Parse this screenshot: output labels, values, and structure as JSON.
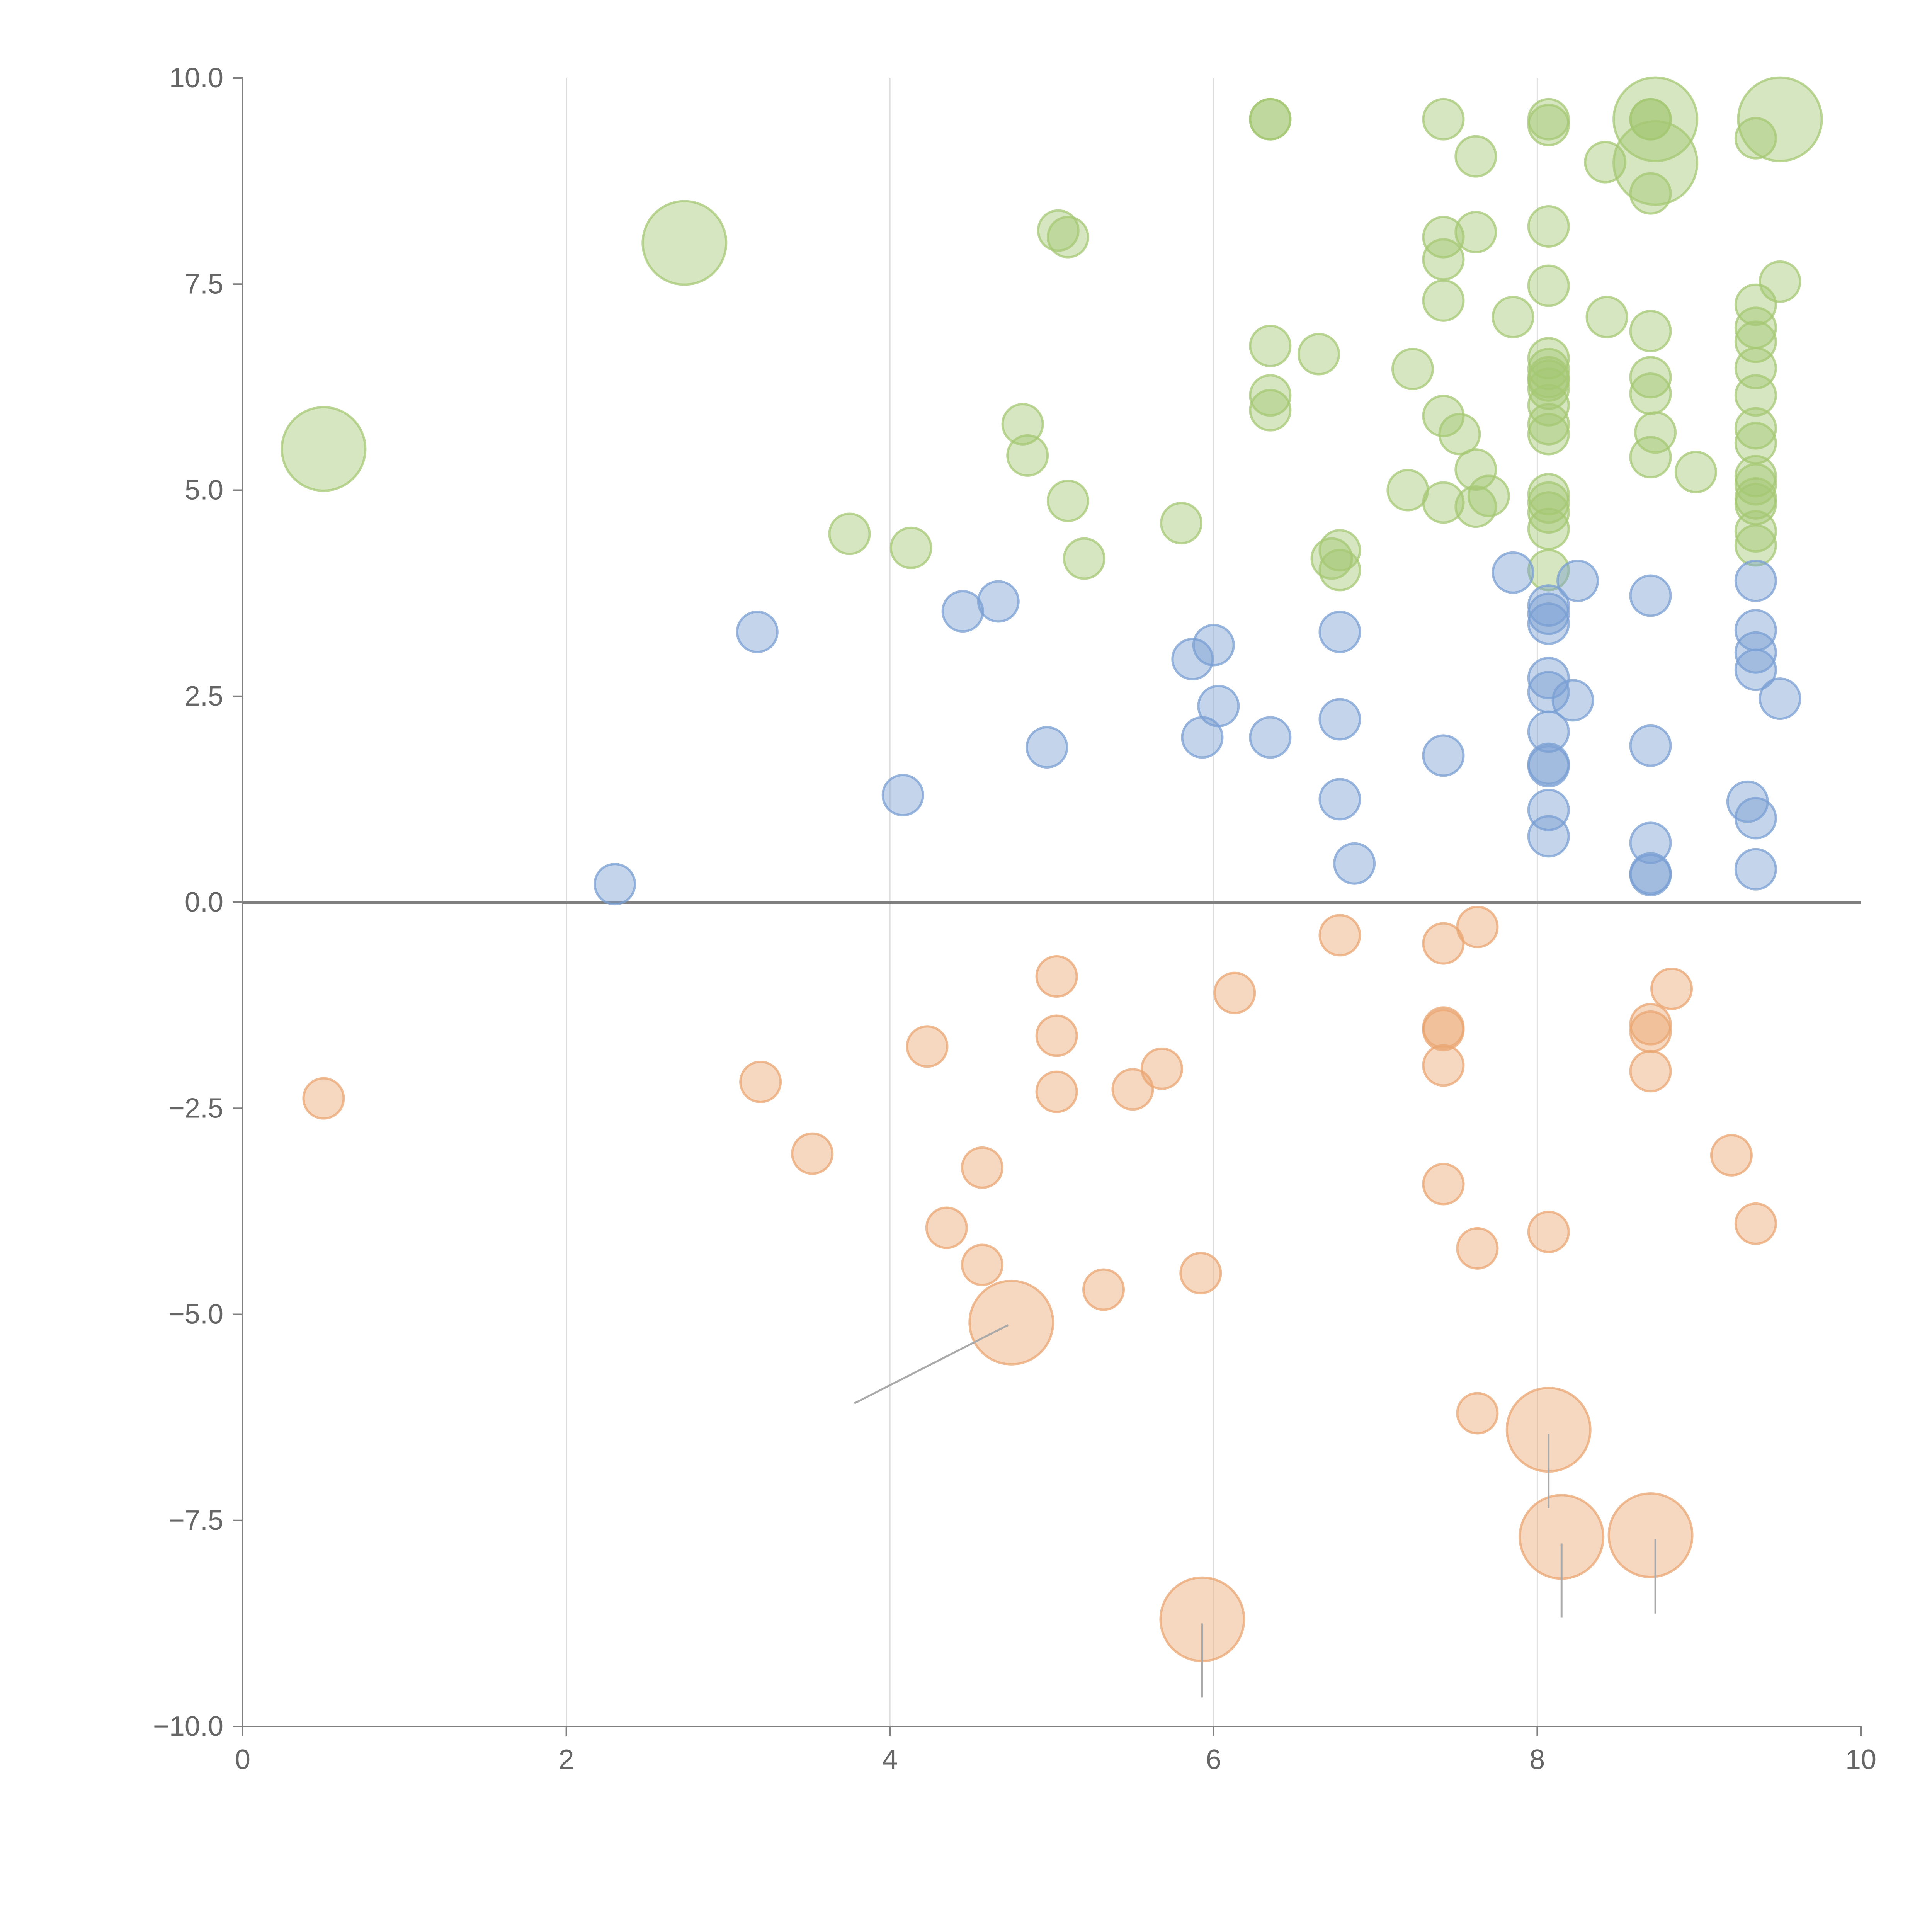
{
  "chart_data": {
    "type": "scatter",
    "title": "",
    "xlabel": "",
    "ylabel": "",
    "xlim": [
      0,
      10
    ],
    "ylim": [
      -10,
      10
    ],
    "grid": "vertical",
    "x_ticks": [
      0,
      2,
      4,
      6,
      8,
      10
    ],
    "x_tick_labels": [
      "0",
      "2",
      "4",
      "6",
      "8",
      "10"
    ],
    "y_ticks": [
      10,
      7.5,
      5,
      2.5,
      0,
      -2.5,
      -5,
      -7.5,
      -10
    ],
    "y_tick_labels": [
      "10.0",
      "7.5",
      "5.0",
      "2.5",
      "0.0",
      "−2.5",
      "−5.0",
      "−7.5",
      "−10.0"
    ],
    "reference_line_y": 0,
    "colors": {
      "green": "#a5c874",
      "blue": "#7a9fd3",
      "orange": "#eaa672",
      "axis": "#808080",
      "grid": "#dddddd",
      "tick_text": "#666666",
      "leader": "#aaaaaa"
    },
    "series": [
      {
        "name": "green",
        "color": "green",
        "points": [
          [
            0.5,
            5.5,
            3
          ],
          [
            2.73,
            8.0,
            3
          ],
          [
            3.75,
            4.47,
            1
          ],
          [
            4.13,
            4.3,
            1
          ],
          [
            4.82,
            5.8,
            1
          ],
          [
            4.85,
            5.42,
            1
          ],
          [
            5.04,
            8.15,
            1
          ],
          [
            5.1,
            8.07,
            1
          ],
          [
            5.1,
            4.87,
            1
          ],
          [
            5.2,
            4.17,
            1
          ],
          [
            5.8,
            4.6,
            1
          ],
          [
            6.35,
            9.5,
            1
          ],
          [
            6.35,
            9.5,
            1
          ],
          [
            6.35,
            6.75,
            1
          ],
          [
            6.35,
            6.15,
            1
          ],
          [
            6.35,
            5.97,
            1
          ],
          [
            6.65,
            6.65,
            1
          ],
          [
            6.73,
            4.17,
            1
          ],
          [
            6.78,
            4.27,
            1
          ],
          [
            6.78,
            4.03,
            1
          ],
          [
            7.2,
            5.0,
            1
          ],
          [
            7.23,
            6.47,
            1
          ],
          [
            7.42,
            9.5,
            1
          ],
          [
            7.42,
            8.07,
            1
          ],
          [
            7.42,
            7.8,
            1
          ],
          [
            7.42,
            7.3,
            1
          ],
          [
            7.42,
            5.9,
            1
          ],
          [
            7.42,
            4.85,
            1
          ],
          [
            7.52,
            5.68,
            1
          ],
          [
            7.62,
            9.05,
            1
          ],
          [
            7.62,
            8.13,
            1
          ],
          [
            7.62,
            5.25,
            1
          ],
          [
            7.62,
            4.8,
            1
          ],
          [
            7.7,
            4.93,
            1
          ],
          [
            7.85,
            7.1,
            1
          ],
          [
            8.07,
            9.5,
            1
          ],
          [
            8.07,
            9.43,
            1
          ],
          [
            8.07,
            8.2,
            1
          ],
          [
            8.07,
            7.48,
            1
          ],
          [
            8.07,
            6.6,
            1
          ],
          [
            8.07,
            6.47,
            1
          ],
          [
            8.07,
            6.37,
            1
          ],
          [
            8.07,
            6.33,
            1
          ],
          [
            8.07,
            6.23,
            1
          ],
          [
            8.07,
            6.03,
            1
          ],
          [
            8.07,
            5.8,
            1
          ],
          [
            8.07,
            5.68,
            1
          ],
          [
            8.07,
            4.95,
            1
          ],
          [
            8.07,
            4.85,
            1
          ],
          [
            8.07,
            4.73,
            1
          ],
          [
            8.07,
            4.53,
            1
          ],
          [
            8.07,
            4.03,
            1
          ],
          [
            8.42,
            8.98,
            1
          ],
          [
            8.43,
            7.1,
            1
          ],
          [
            8.7,
            9.5,
            1
          ],
          [
            8.7,
            9.5,
            1
          ],
          [
            8.7,
            8.6,
            1
          ],
          [
            8.7,
            6.93,
            1
          ],
          [
            8.7,
            6.37,
            1
          ],
          [
            8.7,
            6.17,
            1
          ],
          [
            8.7,
            5.4,
            1
          ],
          [
            8.73,
            5.7,
            1
          ],
          [
            8.73,
            9.5,
            3
          ],
          [
            8.73,
            8.97,
            3
          ],
          [
            8.98,
            5.22,
            1
          ],
          [
            9.35,
            9.27,
            1
          ],
          [
            9.35,
            7.25,
            1
          ],
          [
            9.35,
            6.97,
            1
          ],
          [
            9.35,
            6.8,
            1
          ],
          [
            9.35,
            6.48,
            1
          ],
          [
            9.35,
            6.15,
            1
          ],
          [
            9.35,
            5.75,
            1
          ],
          [
            9.35,
            5.57,
            1
          ],
          [
            9.35,
            5.17,
            1
          ],
          [
            9.35,
            5.07,
            1
          ],
          [
            9.35,
            4.9,
            1
          ],
          [
            9.35,
            4.83,
            1
          ],
          [
            9.35,
            4.5,
            1
          ],
          [
            9.35,
            4.33,
            1
          ],
          [
            9.5,
            7.53,
            1
          ],
          [
            9.5,
            9.5,
            3
          ]
        ]
      },
      {
        "name": "blue",
        "color": "blue",
        "points": [
          [
            2.3,
            0.22,
            1
          ],
          [
            3.18,
            3.28,
            1
          ],
          [
            4.08,
            1.3,
            1
          ],
          [
            4.45,
            3.53,
            1
          ],
          [
            4.67,
            3.65,
            1
          ],
          [
            4.97,
            1.88,
            1
          ],
          [
            5.87,
            2.95,
            1
          ],
          [
            5.93,
            2.0,
            1
          ],
          [
            6.0,
            3.12,
            1
          ],
          [
            6.03,
            2.38,
            1
          ],
          [
            6.35,
            2.0,
            1
          ],
          [
            6.78,
            3.28,
            1
          ],
          [
            6.78,
            2.22,
            1
          ],
          [
            6.78,
            1.25,
            1
          ],
          [
            6.87,
            0.47,
            1
          ],
          [
            7.42,
            1.78,
            1
          ],
          [
            7.85,
            4.0,
            1
          ],
          [
            8.07,
            3.6,
            1
          ],
          [
            8.07,
            3.5,
            1
          ],
          [
            8.07,
            3.38,
            1
          ],
          [
            8.07,
            2.72,
            1
          ],
          [
            8.07,
            2.55,
            1
          ],
          [
            8.07,
            2.07,
            1
          ],
          [
            8.07,
            1.68,
            1
          ],
          [
            8.07,
            1.65,
            1
          ],
          [
            8.07,
            1.12,
            1
          ],
          [
            8.07,
            0.8,
            1
          ],
          [
            8.25,
            3.9,
            1
          ],
          [
            8.22,
            2.45,
            1
          ],
          [
            8.7,
            3.72,
            1
          ],
          [
            8.7,
            1.9,
            1
          ],
          [
            8.7,
            0.72,
            1
          ],
          [
            8.7,
            0.35,
            1
          ],
          [
            8.7,
            0.33,
            1
          ],
          [
            9.35,
            3.9,
            1
          ],
          [
            9.35,
            3.3,
            1
          ],
          [
            9.35,
            3.03,
            1
          ],
          [
            9.35,
            2.82,
            1
          ],
          [
            9.3,
            1.22,
            1
          ],
          [
            9.35,
            1.02,
            1
          ],
          [
            9.35,
            0.4,
            1
          ],
          [
            9.5,
            2.47,
            1
          ]
        ]
      },
      {
        "name": "orange",
        "color": "orange",
        "points": [
          [
            0.5,
            -2.38,
            1
          ],
          [
            3.2,
            -2.18,
            1
          ],
          [
            3.52,
            -3.05,
            1
          ],
          [
            4.23,
            -1.75,
            1
          ],
          [
            4.35,
            -3.95,
            1
          ],
          [
            4.57,
            -3.22,
            1
          ],
          [
            4.57,
            -4.4,
            1
          ],
          [
            4.75,
            -5.1,
            3
          ],
          [
            5.03,
            -0.9,
            1
          ],
          [
            5.03,
            -1.62,
            1
          ],
          [
            5.03,
            -2.3,
            1
          ],
          [
            5.32,
            -4.7,
            1
          ],
          [
            5.5,
            -2.27,
            1
          ],
          [
            5.68,
            -2.02,
            1
          ],
          [
            5.92,
            -4.5,
            1
          ],
          [
            5.93,
            -8.7,
            3
          ],
          [
            6.13,
            -1.1,
            1
          ],
          [
            6.78,
            -0.4,
            1
          ],
          [
            7.42,
            -0.5,
            1
          ],
          [
            7.42,
            -1.52,
            1
          ],
          [
            7.42,
            -1.55,
            1
          ],
          [
            7.42,
            -1.98,
            1
          ],
          [
            7.42,
            -3.42,
            1
          ],
          [
            7.63,
            -0.3,
            1
          ],
          [
            7.63,
            -4.2,
            1
          ],
          [
            7.63,
            -6.2,
            1
          ],
          [
            8.07,
            -4.0,
            1
          ],
          [
            8.07,
            -6.4,
            3
          ],
          [
            8.15,
            -7.7,
            3
          ],
          [
            8.7,
            -1.48,
            1
          ],
          [
            8.7,
            -1.57,
            1
          ],
          [
            8.7,
            -2.05,
            1
          ],
          [
            8.7,
            -7.68,
            3
          ],
          [
            8.83,
            -1.05,
            1
          ],
          [
            9.2,
            -3.07,
            1
          ],
          [
            9.35,
            -3.9,
            1
          ]
        ]
      }
    ]
  }
}
